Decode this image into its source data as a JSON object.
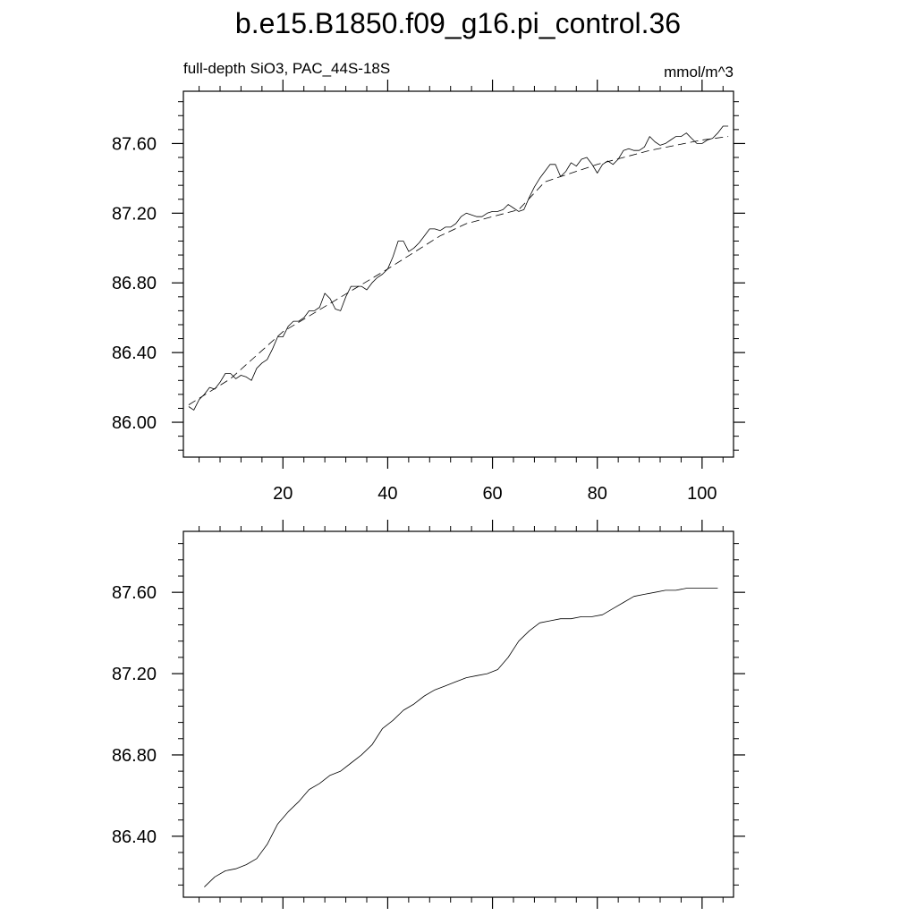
{
  "figure": {
    "title": "b.e15.B1850.f09_g16.pi_control.36",
    "left_subtitle": "full-depth SiO3, PAC_44S-18S",
    "right_subtitle": "mmol/m^3"
  },
  "chart_data": [
    {
      "type": "line",
      "xlim": [
        1,
        106
      ],
      "ylim": [
        85.8,
        87.9
      ],
      "xticks": [
        20,
        40,
        60,
        80,
        100
      ],
      "xtick_labels": [
        "20",
        "40",
        "60",
        "80",
        "100"
      ],
      "yticks": [
        86.0,
        86.4,
        86.8,
        87.2,
        87.6
      ],
      "ytick_labels": [
        "86.00",
        "86.40",
        "86.80",
        "87.20",
        "87.60"
      ],
      "grid": false,
      "series": [
        {
          "style": "solid",
          "x": [
            2,
            3,
            4,
            5,
            6,
            7,
            8,
            9,
            10,
            11,
            12,
            13,
            14,
            15,
            16,
            17,
            18,
            19,
            20,
            21,
            22,
            23,
            24,
            25,
            26,
            27,
            28,
            29,
            30,
            31,
            32,
            33,
            34,
            35,
            36,
            37,
            38,
            39,
            40,
            41,
            42,
            43,
            44,
            45,
            46,
            47,
            48,
            49,
            50,
            51,
            52,
            53,
            54,
            55,
            56,
            57,
            58,
            59,
            60,
            61,
            62,
            63,
            64,
            65,
            66,
            67,
            68,
            69,
            70,
            71,
            72,
            73,
            74,
            75,
            76,
            77,
            78,
            79,
            80,
            81,
            82,
            83,
            84,
            85,
            86,
            87,
            88,
            89,
            90,
            91,
            92,
            93,
            94,
            95,
            96,
            97,
            98,
            99,
            100,
            101,
            102,
            103,
            104,
            105
          ],
          "y": [
            86.09,
            86.07,
            86.13,
            86.16,
            86.2,
            86.19,
            86.23,
            86.28,
            86.28,
            86.25,
            86.27,
            86.26,
            86.24,
            86.31,
            86.34,
            86.36,
            86.42,
            86.49,
            86.49,
            86.55,
            86.58,
            86.58,
            86.6,
            86.64,
            86.64,
            86.66,
            86.74,
            86.71,
            86.65,
            86.64,
            86.72,
            86.78,
            86.78,
            86.78,
            86.76,
            86.8,
            86.83,
            86.85,
            86.88,
            86.95,
            87.04,
            87.04,
            86.98,
            87.0,
            87.03,
            87.07,
            87.11,
            87.11,
            87.1,
            87.12,
            87.12,
            87.14,
            87.18,
            87.2,
            87.19,
            87.18,
            87.18,
            87.2,
            87.21,
            87.21,
            87.22,
            87.25,
            87.23,
            87.21,
            87.22,
            87.29,
            87.35,
            87.4,
            87.44,
            87.48,
            87.48,
            87.41,
            87.44,
            87.49,
            87.47,
            87.51,
            87.52,
            87.48,
            87.43,
            87.48,
            87.5,
            87.48,
            87.51,
            87.56,
            87.57,
            87.56,
            87.56,
            87.58,
            87.64,
            87.61,
            87.59,
            87.6,
            87.62,
            87.64,
            87.64,
            87.66,
            87.63,
            87.6,
            87.6,
            87.62,
            87.63,
            87.66,
            87.7,
            87.7
          ]
        },
        {
          "style": "dashed",
          "x": [
            2,
            10,
            20,
            30,
            40,
            50,
            55,
            60,
            65,
            70,
            80,
            90,
            100,
            105
          ],
          "y": [
            86.1,
            86.25,
            86.52,
            86.7,
            86.88,
            87.07,
            87.14,
            87.18,
            87.22,
            87.38,
            87.48,
            87.56,
            87.62,
            87.64
          ]
        }
      ]
    },
    {
      "type": "line",
      "xlim": [
        1,
        106
      ],
      "ylim": [
        86.1,
        87.9
      ],
      "xticks": [
        20,
        40,
        60,
        80,
        100
      ],
      "xtick_labels": [
        "20",
        "40",
        "60",
        "80",
        "100"
      ],
      "yticks": [
        86.4,
        86.8,
        87.2,
        87.6
      ],
      "ytick_labels": [
        "86.40",
        "86.80",
        "87.20",
        "87.60"
      ],
      "grid": false,
      "series": [
        {
          "style": "solid",
          "x": [
            5,
            7,
            9,
            11,
            13,
            15,
            17,
            19,
            21,
            23,
            25,
            27,
            29,
            31,
            33,
            35,
            37,
            39,
            41,
            43,
            45,
            47,
            49,
            51,
            53,
            55,
            57,
            59,
            61,
            63,
            65,
            67,
            69,
            71,
            73,
            75,
            77,
            79,
            81,
            83,
            85,
            87,
            89,
            91,
            93,
            95,
            97,
            99,
            101,
            103
          ],
          "y": [
            86.15,
            86.2,
            86.23,
            86.24,
            86.26,
            86.29,
            86.36,
            86.46,
            86.52,
            86.57,
            86.63,
            86.66,
            86.7,
            86.72,
            86.76,
            86.8,
            86.85,
            86.93,
            86.97,
            87.02,
            87.05,
            87.09,
            87.12,
            87.14,
            87.16,
            87.18,
            87.19,
            87.2,
            87.22,
            87.28,
            87.36,
            87.41,
            87.45,
            87.46,
            87.47,
            87.47,
            87.48,
            87.48,
            87.49,
            87.52,
            87.55,
            87.58,
            87.59,
            87.6,
            87.61,
            87.61,
            87.62,
            87.62,
            87.62,
            87.62
          ]
        }
      ]
    }
  ]
}
